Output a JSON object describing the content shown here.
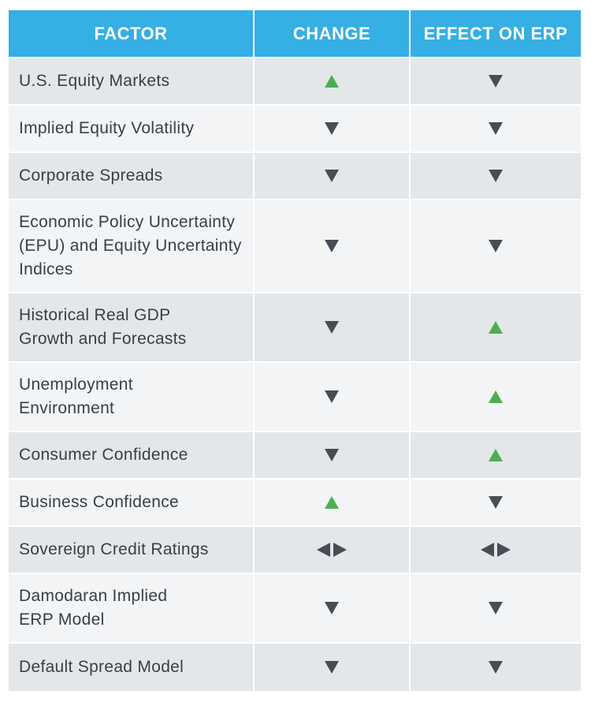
{
  "colors": {
    "header_bg": "#35afe4",
    "up": "#4caf50",
    "down": "#454d55",
    "flat": "#454d55"
  },
  "header": {
    "factor": "FACTOR",
    "change": "CHANGE",
    "effect": "EFFECT ON ERP"
  },
  "rows": [
    {
      "factor": "U.S. Equity Markets",
      "change": "up",
      "effect": "down"
    },
    {
      "factor": "Implied Equity Volatility",
      "change": "down",
      "effect": "down"
    },
    {
      "factor": "Corporate Spreads",
      "change": "down",
      "effect": "down"
    },
    {
      "factor": "Economic Policy Uncertainty (EPU) and Equity Uncertainty Indices",
      "change": "down",
      "effect": "down"
    },
    {
      "factor": "Historical Real GDP Growth and Forecasts",
      "change": "down",
      "effect": "up"
    },
    {
      "factor": "Unemployment Environment",
      "change": "down",
      "effect": "up"
    },
    {
      "factor": "Consumer Confidence",
      "change": "down",
      "effect": "up"
    },
    {
      "factor": "Business Confidence",
      "change": "up",
      "effect": "down"
    },
    {
      "factor": "Sovereign Credit Ratings",
      "change": "flat",
      "effect": "flat"
    },
    {
      "factor": "Damodaran Implied ERP Model",
      "change": "down",
      "effect": "down"
    },
    {
      "factor": "Default Spread Model",
      "change": "down",
      "effect": "down"
    }
  ]
}
